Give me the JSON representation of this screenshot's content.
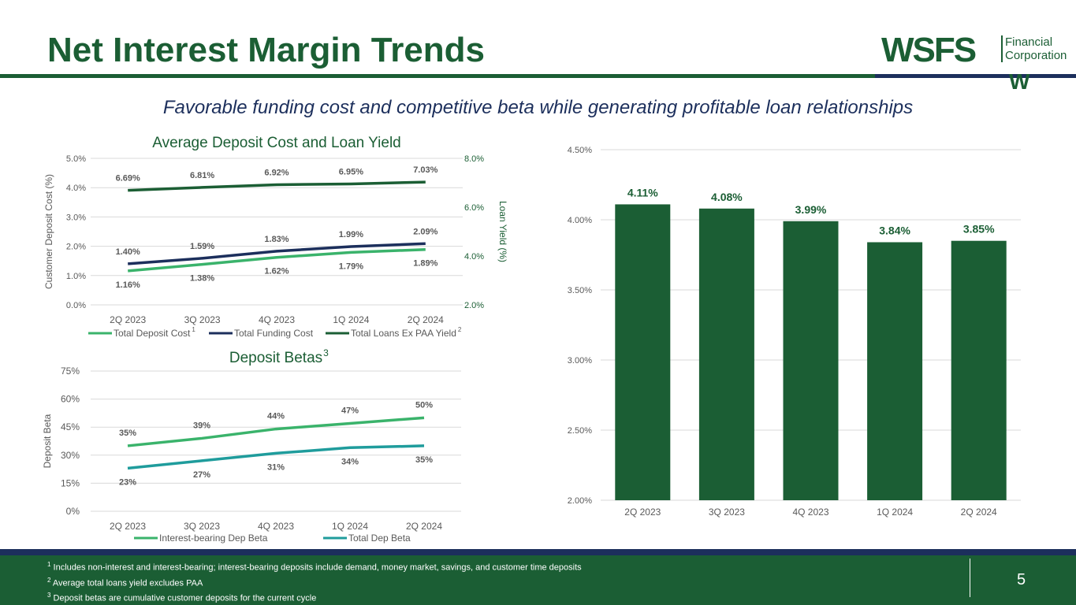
{
  "header": {
    "title": "Net Interest Margin Trends",
    "subtitle": "Favorable funding cost and competitive beta while generating profitable loan relationships"
  },
  "logo": {
    "name": "WSFS",
    "sub_line1": "Financial",
    "sub_line2": "Corporation",
    "mark": "W"
  },
  "colors": {
    "brand_green": "#1b5e34",
    "navy": "#1c2f5c",
    "light_green": "#3ab36b",
    "teal": "#1f9c9c"
  },
  "footer": {
    "notes": [
      {
        "num": "1",
        "text": "Includes non-interest and interest-bearing; interest-bearing deposits include demand, money market, savings, and customer time deposits"
      },
      {
        "num": "2",
        "text": "Average total loans yield excludes PAA"
      },
      {
        "num": "3",
        "text": "Deposit betas are cumulative customer deposits for the current cycle"
      }
    ],
    "page_number": "5"
  },
  "chart_data": [
    {
      "type": "line",
      "title": "Average Deposit Cost and Loan Yield",
      "categories": [
        "2Q 2023",
        "3Q 2023",
        "4Q 2023",
        "1Q 2024",
        "2Q 2024"
      ],
      "ylabel": "Customer Deposit Cost (%)",
      "ylim": [
        0,
        5
      ],
      "yticks": [
        "0.0%",
        "1.0%",
        "2.0%",
        "3.0%",
        "4.0%",
        "5.0%"
      ],
      "y2label": "Loan Yield (%)",
      "y2lim": [
        2,
        8
      ],
      "y2ticks": [
        "2.0%",
        "4.0%",
        "6.0%",
        "8.0%"
      ],
      "series": [
        {
          "name": "Total Deposit Cost",
          "sup": "1",
          "axis": "left",
          "color": "#3ab36b",
          "values": [
            1.16,
            1.38,
            1.62,
            1.79,
            1.89
          ],
          "labels": [
            "1.16%",
            "1.38%",
            "1.62%",
            "1.79%",
            "1.89%"
          ],
          "label_pos": "below"
        },
        {
          "name": "Total Funding Cost",
          "sup": "",
          "axis": "left",
          "color": "#1c2f5c",
          "values": [
            1.4,
            1.59,
            1.83,
            1.99,
            2.09
          ],
          "labels": [
            "1.40%",
            "1.59%",
            "1.83%",
            "1.99%",
            "2.09%"
          ],
          "label_pos": "above"
        },
        {
          "name": "Total Loans Ex PAA Yield",
          "sup": "2",
          "axis": "right",
          "color": "#1b5e34",
          "values": [
            6.69,
            6.81,
            6.92,
            6.95,
            7.03
          ],
          "labels": [
            "6.69%",
            "6.81%",
            "6.92%",
            "6.95%",
            "7.03%"
          ],
          "label_pos": "above"
        }
      ],
      "legend": "bottom"
    },
    {
      "type": "line",
      "title": "Deposit Betas",
      "title_sup": "3",
      "categories": [
        "2Q 2023",
        "3Q 2023",
        "4Q 2023",
        "1Q 2024",
        "2Q 2024"
      ],
      "ylabel": "Deposit Beta",
      "ylim": [
        0,
        75
      ],
      "yticks": [
        "0%",
        "15%",
        "30%",
        "45%",
        "60%",
        "75%"
      ],
      "series": [
        {
          "name": "Interest-bearing Dep Beta",
          "color": "#3ab36b",
          "values": [
            35,
            39,
            44,
            47,
            50
          ],
          "labels": [
            "35%",
            "39%",
            "44%",
            "47%",
            "50%"
          ],
          "label_pos": "above"
        },
        {
          "name": "Total Dep Beta",
          "color": "#1f9c9c",
          "values": [
            23,
            27,
            31,
            34,
            35
          ],
          "labels": [
            "23%",
            "27%",
            "31%",
            "34%",
            "35%"
          ],
          "label_pos": "below"
        }
      ],
      "legend": "bottom"
    },
    {
      "type": "bar",
      "title": "",
      "categories": [
        "2Q 2023",
        "3Q 2023",
        "4Q 2023",
        "1Q 2024",
        "2Q 2024"
      ],
      "values": [
        4.11,
        4.08,
        3.99,
        3.84,
        3.85
      ],
      "labels": [
        "4.11%",
        "4.08%",
        "3.99%",
        "3.84%",
        "3.85%"
      ],
      "ylim": [
        2.0,
        4.5
      ],
      "yticks": [
        "2.00%",
        "2.50%",
        "3.00%",
        "3.50%",
        "4.00%",
        "4.50%"
      ],
      "color": "#1b5e34"
    }
  ]
}
